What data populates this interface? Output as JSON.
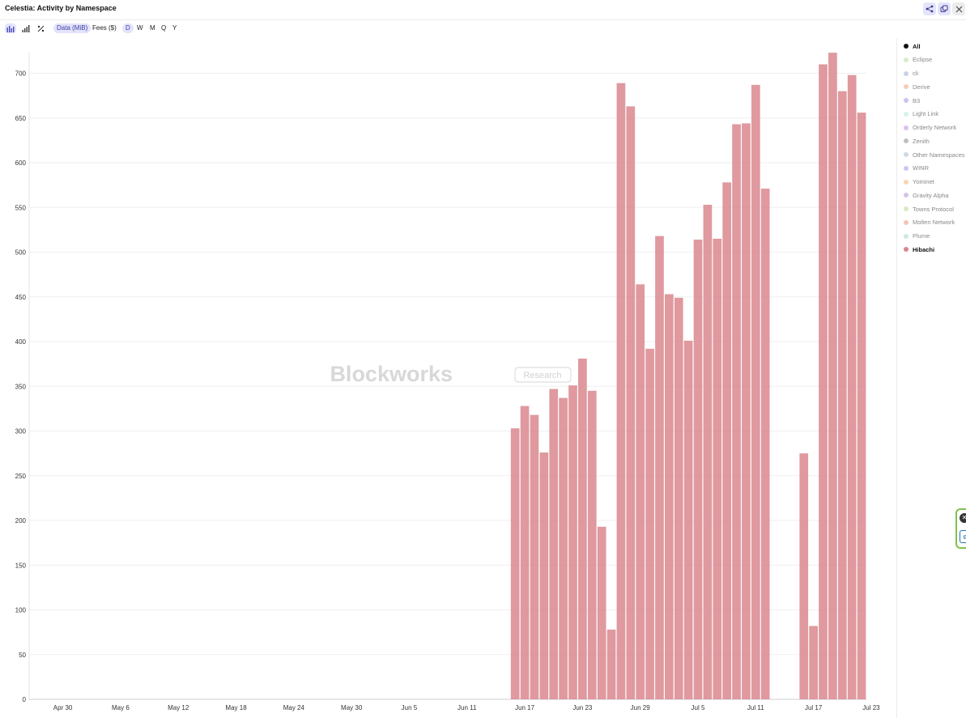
{
  "window": {
    "title": "Celestia: Activity by Namespace",
    "share_icon": "share-icon",
    "copy_icon": "copy-icon",
    "close_icon": "close-icon"
  },
  "toolbar": {
    "chart_type_icons": [
      "bar-chart-icon",
      "stacked-bar-icon",
      "percent-icon"
    ],
    "metric_tabs": [
      "Data (MiB)",
      "Fees ($)"
    ],
    "active_metric": "Data (MiB)",
    "interval_tabs": [
      "D",
      "W",
      "M",
      "Q",
      "Y"
    ],
    "active_interval": "D"
  },
  "watermark": {
    "brand": "Blockworks",
    "tag": "Research"
  },
  "legend": {
    "items": [
      {
        "label": "All",
        "color": "#111111"
      },
      {
        "label": "Eclipse",
        "color": "#d8ecc4"
      },
      {
        "label": "cli",
        "color": "#c9d3e6"
      },
      {
        "label": "Derive",
        "color": "#f5cdb8"
      },
      {
        "label": "B3",
        "color": "#c6c6ee"
      },
      {
        "label": "Light Link",
        "color": "#d6f2ec"
      },
      {
        "label": "Orderly Network",
        "color": "#dcc0ee"
      },
      {
        "label": "Zenith",
        "color": "#bfbfbf"
      },
      {
        "label": "Other Namespaces",
        "color": "#cfd9e6"
      },
      {
        "label": "WINR",
        "color": "#c8c8f2"
      },
      {
        "label": "Yominet",
        "color": "#f6d7b4"
      },
      {
        "label": "Gravity Alpha",
        "color": "#d6c3e8"
      },
      {
        "label": "Towns Protocol",
        "color": "#d6ecc4"
      },
      {
        "label": "Molten Network",
        "color": "#f3c4bb"
      },
      {
        "label": "Plume",
        "color": "#cfe9dd"
      },
      {
        "label": "Hibachi",
        "color": "#d9878e"
      }
    ]
  },
  "side_widget": {
    "top_glyph": "✕",
    "bottom_glyph": "e"
  },
  "chart_data": {
    "type": "bar",
    "series": [
      {
        "name": "Hibachi",
        "color": "#d9878e",
        "start_date": "2024-04-27",
        "values": [
          0,
          0,
          0,
          0,
          0,
          0,
          0,
          0,
          0,
          0,
          0,
          0,
          0,
          0,
          0,
          0,
          0,
          0,
          0,
          0,
          0,
          0,
          0,
          0,
          0,
          0,
          0,
          0,
          0,
          0,
          0,
          0,
          0,
          0,
          0,
          0,
          0,
          0,
          0,
          0,
          0,
          0,
          0,
          0,
          0,
          0,
          0,
          0,
          0,
          0,
          303,
          328,
          318,
          276,
          347,
          337,
          351,
          381,
          345,
          193,
          78,
          689,
          663,
          464,
          392,
          518,
          453,
          449,
          401,
          514,
          553,
          515,
          578,
          643,
          644,
          687,
          571,
          0,
          0,
          0,
          275,
          82,
          710,
          723,
          680,
          698,
          656
        ]
      }
    ],
    "x_tick_labels": [
      "Apr 30",
      "May 6",
      "May 12",
      "May 18",
      "May 24",
      "May 30",
      "Jun 5",
      "Jun 11",
      "Jun 17",
      "Jun 23",
      "Jun 29",
      "Jul 5",
      "Jul 11",
      "Jul 17",
      "Jul 23"
    ],
    "x_tick_index_offsets": [
      3,
      9,
      15,
      21,
      27,
      33,
      39,
      45,
      51,
      57,
      63,
      69,
      75,
      81,
      87
    ],
    "y_ticks": [
      0,
      50,
      100,
      150,
      200,
      250,
      300,
      350,
      400,
      450,
      500,
      550,
      600,
      650,
      700
    ],
    "ylim": [
      0,
      724
    ],
    "grid": true,
    "legend_position": "right"
  }
}
